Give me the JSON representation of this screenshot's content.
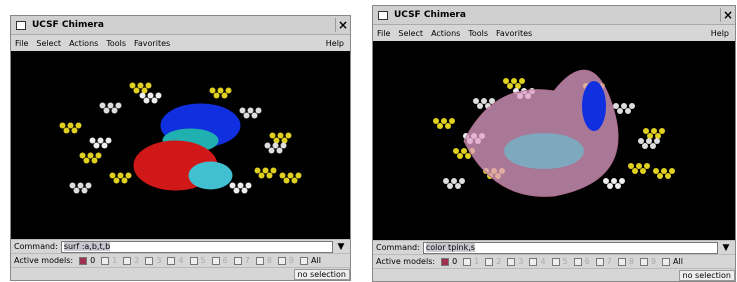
{
  "windows": [
    {
      "title": "UCSF Chimera",
      "close": "×",
      "menu": [
        "File",
        "Select",
        "Actions",
        "Tools",
        "Favorites"
      ],
      "help": "Help",
      "command_label": "Command:",
      "command": "surf :a,b,t,b",
      "dropdown": "▼",
      "active_label": "Active models:",
      "models": [
        "0",
        "1",
        "2",
        "3",
        "4",
        "5",
        "6",
        "7",
        "8",
        "9",
        "All"
      ],
      "status": "no selection"
    },
    {
      "title": "UCSF Chimera",
      "close": "×",
      "menu": [
        "File",
        "Select",
        "Actions",
        "Tools",
        "Favorites"
      ],
      "help": "Help",
      "command_label": "Command:",
      "command": "color tpink,s",
      "dropdown": "▼",
      "active_label": "Active models:",
      "models": [
        "0",
        "1",
        "2",
        "3",
        "4",
        "5",
        "6",
        "7",
        "8",
        "9",
        "All"
      ],
      "status": "no selection"
    }
  ]
}
